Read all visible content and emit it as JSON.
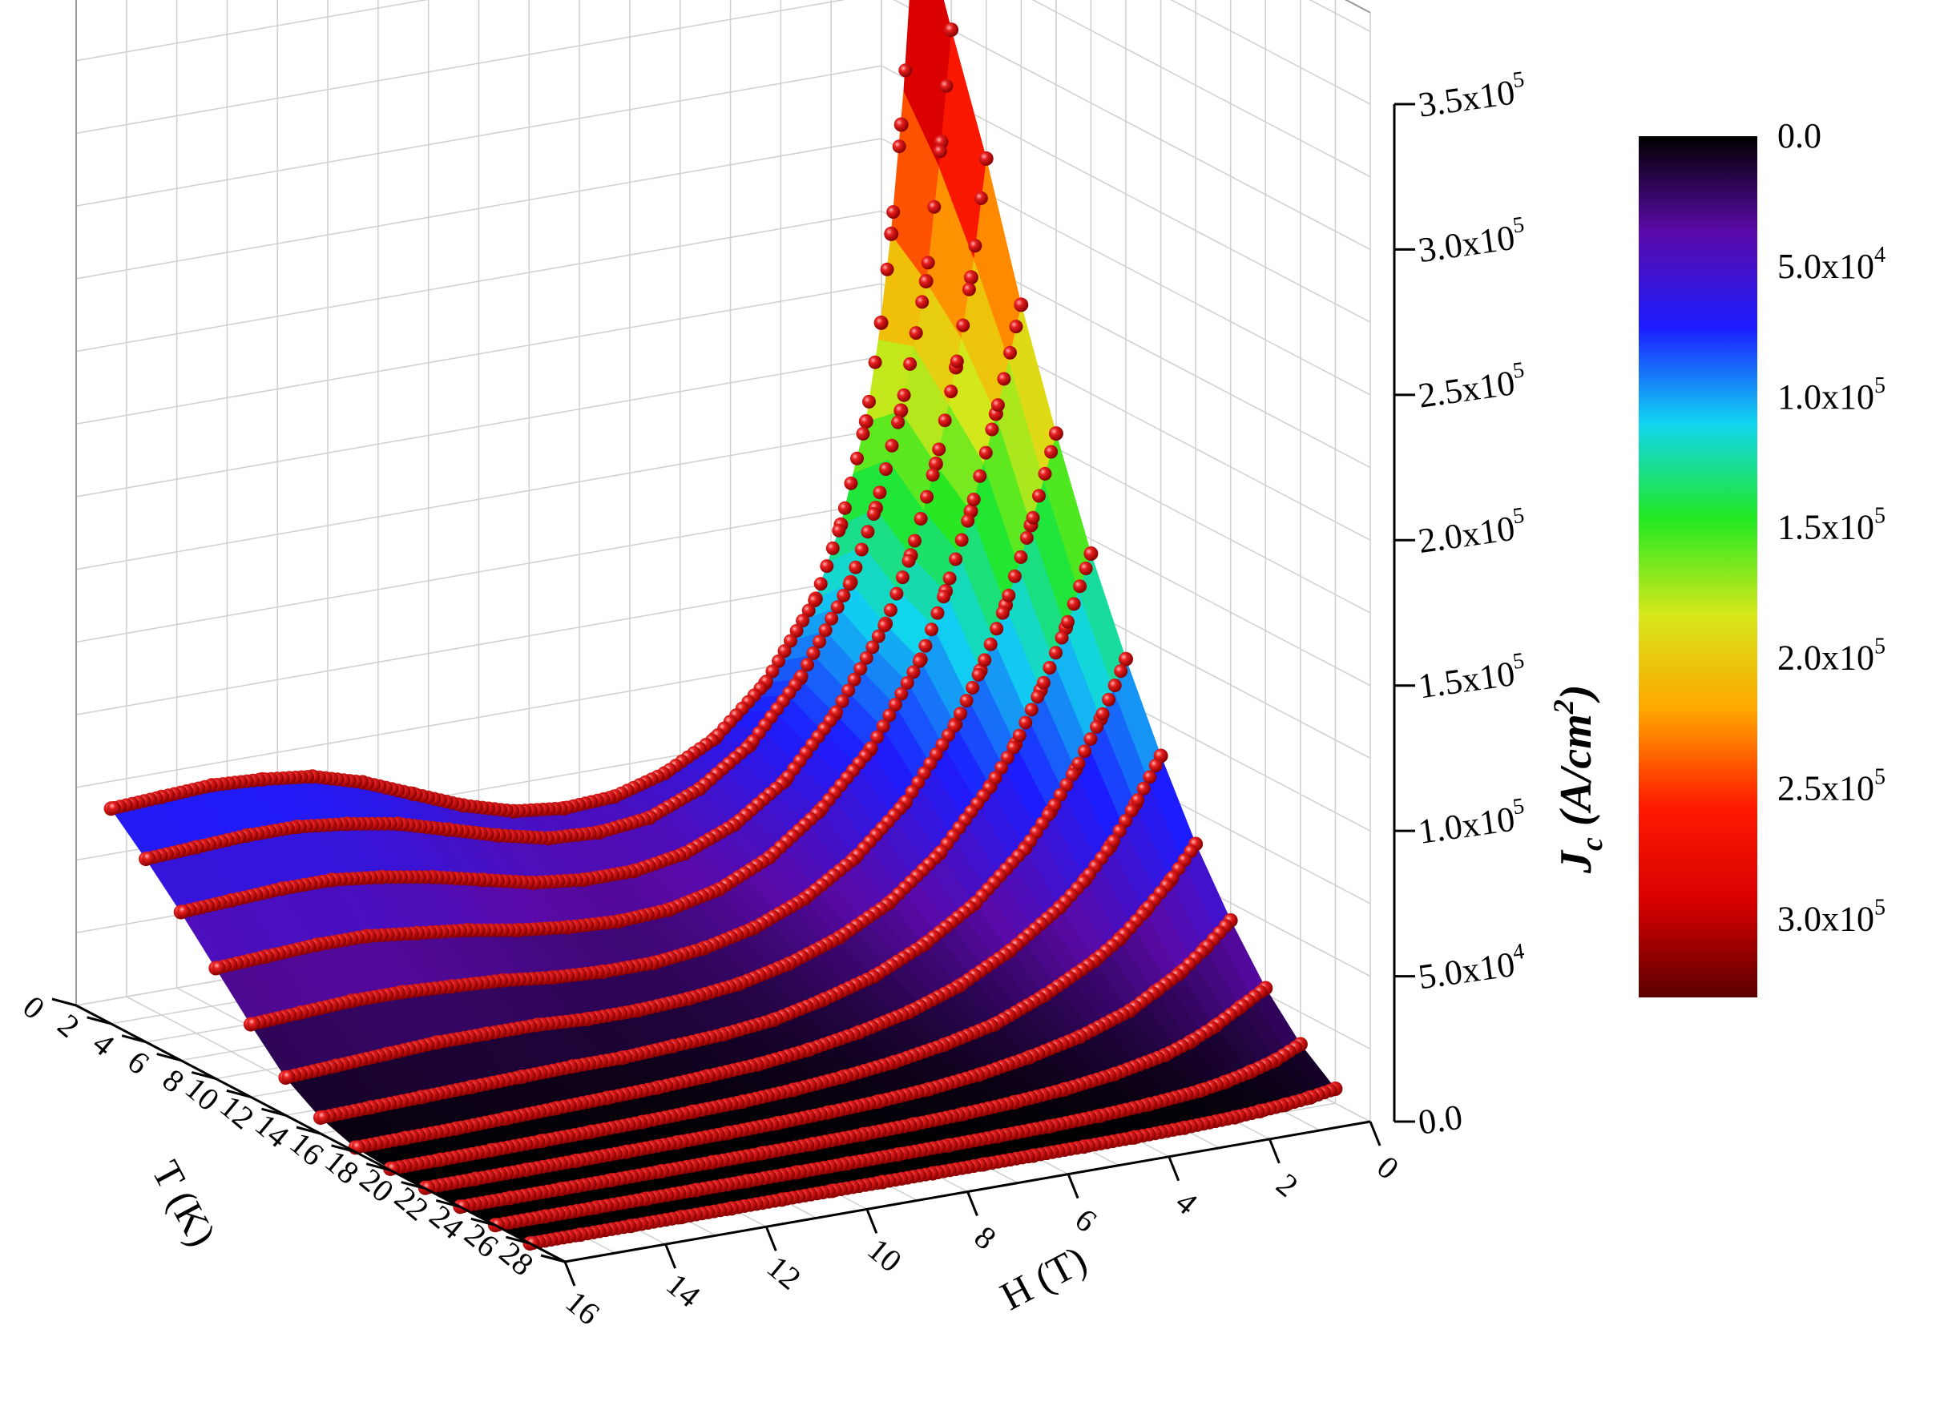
{
  "chart_data": {
    "type": "surface3d",
    "title": "",
    "x_axis": {
      "label": "H (T)",
      "ticks": [
        "0",
        "2",
        "4",
        "6",
        "8",
        "10",
        "12",
        "14",
        "16"
      ],
      "range": [
        0,
        16
      ]
    },
    "y_axis": {
      "label": "T (K)",
      "ticks": [
        "0",
        "2",
        "4",
        "6",
        "8",
        "10",
        "12",
        "14",
        "16",
        "18",
        "20",
        "22",
        "24",
        "26",
        "28"
      ],
      "range": [
        0,
        28
      ]
    },
    "z_axis": {
      "label_main": "J",
      "label_sub": "c",
      "label_unit": "(A/cm",
      "label_sup": "2",
      "label_close": ")",
      "range": [
        0,
        350000
      ],
      "ticks": [
        {
          "mantissa": "0.0",
          "exp": ""
        },
        {
          "mantissa": "5.0x10",
          "exp": "4"
        },
        {
          "mantissa": "1.0x10",
          "exp": "5"
        },
        {
          "mantissa": "1.5x10",
          "exp": "5"
        },
        {
          "mantissa": "2.0x10",
          "exp": "5"
        },
        {
          "mantissa": "2.5x10",
          "exp": "5"
        },
        {
          "mantissa": "3.0x10",
          "exp": "5"
        },
        {
          "mantissa": "3.5x10",
          "exp": "5"
        }
      ]
    },
    "colorbar": {
      "range": [
        0,
        330000
      ],
      "stops": [
        "#000000",
        "#5a0aa8",
        "#1c1cff",
        "#11d4f0",
        "#22e822",
        "#d7e81b",
        "#ffa500",
        "#ff1a00",
        "#d80000",
        "#5a0000"
      ],
      "labels": [
        {
          "mantissa": "0.0",
          "exp": ""
        },
        {
          "mantissa": "5.0x10",
          "exp": "4"
        },
        {
          "mantissa": "1.0x10",
          "exp": "5"
        },
        {
          "mantissa": "1.5x10",
          "exp": "5"
        },
        {
          "mantissa": "2.0x10",
          "exp": "5"
        },
        {
          "mantissa": "2.5x10",
          "exp": "5"
        },
        {
          "mantissa": "3.0x10",
          "exp": "5"
        }
      ]
    },
    "marker_color": "#e01010",
    "series": [
      {
        "T": 2,
        "H": [
          0,
          0.1,
          0.3,
          0.5,
          0.7,
          1,
          1.5,
          2,
          3,
          4,
          5,
          6,
          7,
          8,
          9,
          10,
          11,
          12,
          13,
          14,
          15,
          16
        ],
        "Jc": [
          340000,
          308000,
          262000,
          225000,
          195000,
          162000,
          128000,
          104000,
          78000,
          62000,
          53000,
          48000,
          47000,
          49000,
          54000,
          61000,
          68000,
          73000,
          75000,
          76000,
          75000,
          74000
        ]
      },
      {
        "T": 4,
        "H": [
          0,
          0.2,
          0.5,
          1,
          1.5,
          2,
          3,
          4,
          5,
          6,
          7,
          8,
          9,
          10,
          11,
          12,
          13,
          14,
          15,
          16
        ],
        "Jc": [
          300000,
          262000,
          215000,
          172000,
          140000,
          116000,
          86000,
          66000,
          54000,
          47000,
          45000,
          46000,
          50000,
          55000,
          60000,
          63000,
          65000,
          65000,
          64000,
          63000
        ]
      },
      {
        "T": 6,
        "H": [
          0,
          0.3,
          0.6,
          1,
          1.5,
          2,
          3,
          4,
          5,
          6,
          7,
          8,
          9,
          10,
          11,
          12,
          13,
          14,
          15,
          16
        ],
        "Jc": [
          262000,
          222000,
          192000,
          160000,
          130000,
          108000,
          80000,
          60000,
          48000,
          41000,
          38000,
          38000,
          40000,
          44000,
          48000,
          51000,
          53000,
          53000,
          52000,
          51000
        ]
      },
      {
        "T": 8,
        "H": [
          0,
          0.5,
          1,
          1.5,
          2,
          3,
          4,
          5,
          6,
          7,
          8,
          9,
          10,
          11,
          12,
          13,
          14,
          15,
          16
        ],
        "Jc": [
          218000,
          182000,
          150000,
          124000,
          102000,
          74000,
          56000,
          43000,
          35000,
          31000,
          30000,
          31000,
          33000,
          36000,
          38000,
          40000,
          40000,
          39000,
          38000
        ]
      },
      {
        "T": 10,
        "H": [
          0,
          0.5,
          1,
          1.5,
          2,
          3,
          4,
          5,
          6,
          7,
          8,
          9,
          10,
          11,
          12,
          13,
          14,
          15,
          16
        ],
        "Jc": [
          180000,
          150000,
          124000,
          103000,
          86000,
          62000,
          46000,
          35000,
          28000,
          24000,
          22000,
          22000,
          23000,
          25000,
          26000,
          27000,
          27000,
          26000,
          25000
        ]
      },
      {
        "T": 12,
        "H": [
          0,
          0.5,
          1,
          1.5,
          2,
          3,
          4,
          5,
          6,
          7,
          8,
          9,
          10,
          11,
          12,
          13,
          14,
          15,
          16
        ],
        "Jc": [
          145000,
          121000,
          101000,
          84000,
          71000,
          51000,
          37000,
          28000,
          22000,
          18000,
          16000,
          15000,
          15000,
          16000,
          16000,
          16000,
          15000,
          14000,
          13000
        ]
      },
      {
        "T": 14,
        "H": [
          0,
          0.5,
          1,
          1.5,
          2,
          3,
          4,
          5,
          6,
          7,
          8,
          9,
          10,
          11,
          12,
          13,
          14,
          15,
          16
        ],
        "Jc": [
          115000,
          96000,
          80000,
          67000,
          56000,
          40000,
          29000,
          21000,
          16000,
          12000,
          10000,
          9000,
          8000,
          8000,
          7500,
          7000,
          6500,
          6000,
          5500
        ]
      },
      {
        "T": 16,
        "H": [
          0,
          0.5,
          1,
          1.5,
          2,
          3,
          4,
          5,
          6,
          7,
          8,
          9,
          10,
          11,
          12,
          13,
          14,
          15,
          16
        ],
        "Jc": [
          88000,
          73000,
          60000,
          50000,
          42000,
          30000,
          21000,
          15000,
          11000,
          8000,
          6000,
          5000,
          4000,
          3500,
          3000,
          2500,
          2000,
          1800,
          1500
        ]
      },
      {
        "T": 18,
        "H": [
          0,
          0.5,
          1,
          1.5,
          2,
          3,
          4,
          5,
          6,
          7,
          8,
          9,
          10,
          11,
          12,
          13,
          14,
          15,
          16
        ],
        "Jc": [
          64000,
          53000,
          44000,
          36000,
          30000,
          21000,
          14000,
          10000,
          7000,
          5000,
          3500,
          2500,
          2000,
          1500,
          1200,
          1000,
          800,
          600,
          500
        ]
      },
      {
        "T": 20,
        "H": [
          0,
          0.5,
          1,
          1.5,
          2,
          3,
          4,
          5,
          6,
          7,
          8,
          9,
          10,
          11,
          12,
          13,
          14,
          15,
          16
        ],
        "Jc": [
          44000,
          36000,
          29000,
          24000,
          19000,
          13000,
          9000,
          6000,
          4000,
          2800,
          2000,
          1400,
          1000,
          800,
          600,
          500,
          400,
          300,
          250
        ]
      },
      {
        "T": 22,
        "H": [
          0,
          0.5,
          1,
          1.5,
          2,
          3,
          4,
          5,
          6,
          7,
          8,
          9,
          10,
          11,
          12,
          13,
          14,
          15,
          16
        ],
        "Jc": [
          27000,
          22000,
          17000,
          13000,
          10000,
          6500,
          4200,
          2800,
          1800,
          1200,
          800,
          500,
          350,
          250,
          180,
          120,
          90,
          70,
          50
        ]
      },
      {
        "T": 24,
        "H": [
          0,
          0.5,
          1,
          1.5,
          2,
          3,
          4,
          5,
          6,
          7,
          8,
          9,
          10,
          11,
          12,
          13,
          14,
          15,
          16
        ],
        "Jc": [
          14000,
          10000,
          7500,
          5500,
          4000,
          2400,
          1400,
          800,
          500,
          300,
          200,
          120,
          80,
          60,
          40,
          30,
          20,
          15,
          10
        ]
      },
      {
        "T": 26,
        "H": [
          0,
          0.5,
          1,
          1.5,
          2,
          3,
          4,
          5,
          6,
          7,
          8,
          9,
          10,
          11,
          12,
          13,
          14,
          15,
          16
        ],
        "Jc": [
          5000,
          3500,
          2500,
          1800,
          1200,
          600,
          300,
          150,
          80,
          40,
          20,
          10,
          5,
          3,
          2,
          1,
          1,
          0,
          0
        ]
      }
    ]
  }
}
